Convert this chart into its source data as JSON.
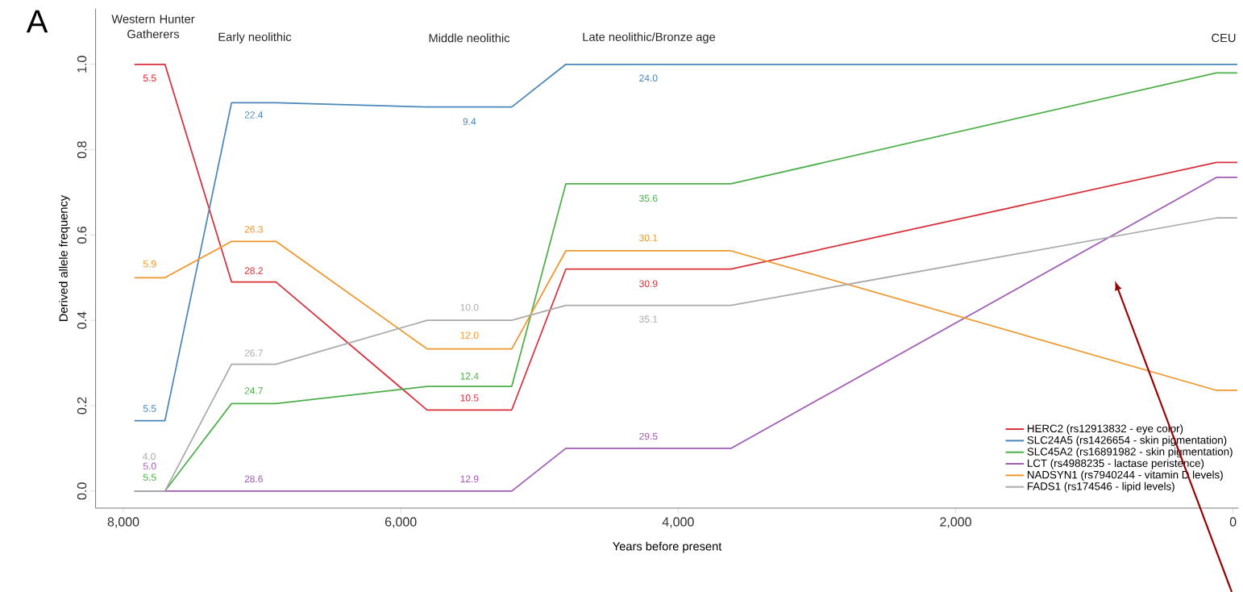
{
  "chart_data": {
    "type": "line",
    "title": "A",
    "xlabel": "Years before present",
    "ylabel": "Derived allele frequency",
    "x": [
      7920,
      7810,
      7700,
      7220,
      7060,
      6900,
      5810,
      5505,
      5200,
      4810,
      4215,
      3620,
      120,
      -30
    ],
    "series": [
      {
        "name": "HERC2 (rs12913832 - eye color)",
        "color": "#d7303a",
        "values": [
          1.0,
          1.0,
          1.0,
          0.49,
          0.49,
          0.49,
          0.19,
          0.19,
          0.19,
          0.52,
          0.52,
          0.52,
          0.77,
          0.77
        ]
      },
      {
        "name": "SLC24A5 (rs1426654 - skin pigmentation)",
        "color": "#4a86b8",
        "values": [
          0.165,
          0.165,
          0.165,
          0.91,
          0.91,
          0.91,
          0.9,
          0.9,
          0.9,
          1.0,
          1.0,
          1.0,
          1.0,
          1.0
        ]
      },
      {
        "name": "SLC45A2 (rs16891982 - skin pigmentation)",
        "color": "#4daf4a",
        "values": [
          0,
          0,
          0,
          0.205,
          0.205,
          0.205,
          0.245,
          0.245,
          0.245,
          0.72,
          0.72,
          0.72,
          0.98,
          0.98
        ]
      },
      {
        "name": "LCT (rs4988235 - lactase peristence)",
        "color": "#a05bb5",
        "values": [
          0,
          0,
          0,
          0,
          0,
          0,
          0,
          0,
          0,
          0.1,
          0.1,
          0.1,
          0.735,
          0.735
        ]
      },
      {
        "name": "NADSYN1 (rs7940244 - vitamin D levels)",
        "color": "#f0962a",
        "values": [
          0.5,
          0.5,
          0.5,
          0.585,
          0.585,
          0.585,
          0.333,
          0.333,
          0.333,
          0.563,
          0.563,
          0.563,
          0.236,
          0.236
        ]
      },
      {
        "name": "FADS1 (rs174546 - lipid levels)",
        "color": "#aaaaaa",
        "values": [
          0,
          0,
          0,
          0.297,
          0.297,
          0.297,
          0.4,
          0.4,
          0.4,
          0.435,
          0.435,
          0.435,
          0.64,
          0.64
        ]
      }
    ],
    "annotations": [
      "Western Hunter Gatherers",
      "Early neolithic",
      "Middle neolithic",
      "Late neolithic/Bronze age",
      "CEU",
      {
        "text": "5.5",
        "x": 7810,
        "y": 1.0
      },
      {
        "text": "28.2",
        "x": 7060,
        "y": 0.49
      },
      {
        "text": "10.5",
        "x": 5505,
        "y": 0.19
      },
      {
        "text": "30.9",
        "x": 4215,
        "y": 0.52
      },
      {
        "text": "5.5",
        "x": 7810,
        "y": 0.165
      },
      {
        "text": "22.4",
        "x": 7060,
        "y": 0.91
      },
      {
        "text": "9.4",
        "x": 5505,
        "y": 0.9
      },
      {
        "text": "24.0",
        "x": 4215,
        "y": 1.0
      },
      {
        "text": "5.5",
        "x": 7810,
        "y": 0
      },
      {
        "text": "24.7",
        "x": 7060,
        "y": 0.205
      },
      {
        "text": "12.4",
        "x": 5505,
        "y": 0.245
      },
      {
        "text": "35.6",
        "x": 4215,
        "y": 0.72
      },
      {
        "text": "5.0",
        "x": 7810,
        "y": 0
      },
      {
        "text": "28.6",
        "x": 7060,
        "y": 0
      },
      {
        "text": "12.9",
        "x": 5505,
        "y": 0
      },
      {
        "text": "29.5",
        "x": 4215,
        "y": 0.1
      },
      {
        "text": "5.9",
        "x": 7810,
        "y": 0.5
      },
      {
        "text": "26.3",
        "x": 7060,
        "y": 0.585
      },
      {
        "text": "12.0",
        "x": 5505,
        "y": 0.333
      },
      {
        "text": "30.1",
        "x": 4215,
        "y": 0.563
      },
      "4.0",
      {
        "text": "26.7",
        "x": 7060,
        "y": 0.297
      },
      {
        "text": "10.0",
        "x": 5505,
        "y": 0.4
      },
      {
        "text": "35.1",
        "x": 4215,
        "y": 0.435
      }
    ],
    "xlim": [
      8200,
      -40
    ],
    "ylim": [
      -0.04,
      1.13
    ],
    "xticks": [
      {
        "value": 8000,
        "label": "8,000"
      },
      {
        "value": 6000,
        "label": "6,000"
      },
      {
        "value": 4000,
        "label": "4,000"
      },
      {
        "value": 2000,
        "label": "2,000"
      },
      0
    ],
    "yticks": [
      {
        "value": 0,
        "label": "0.0"
      },
      {
        "value": 0.2,
        "label": "0.2"
      },
      {
        "value": 0.4,
        "label": "0.4"
      },
      {
        "value": 0.6,
        "label": "0.6"
      },
      {
        "value": 0.8,
        "label": "0.8"
      },
      {
        "value": 1,
        "label": "1.0"
      }
    ],
    "legend": "bottom right",
    "marker": "none",
    "line_style": "solid",
    "grid": false
  }
}
